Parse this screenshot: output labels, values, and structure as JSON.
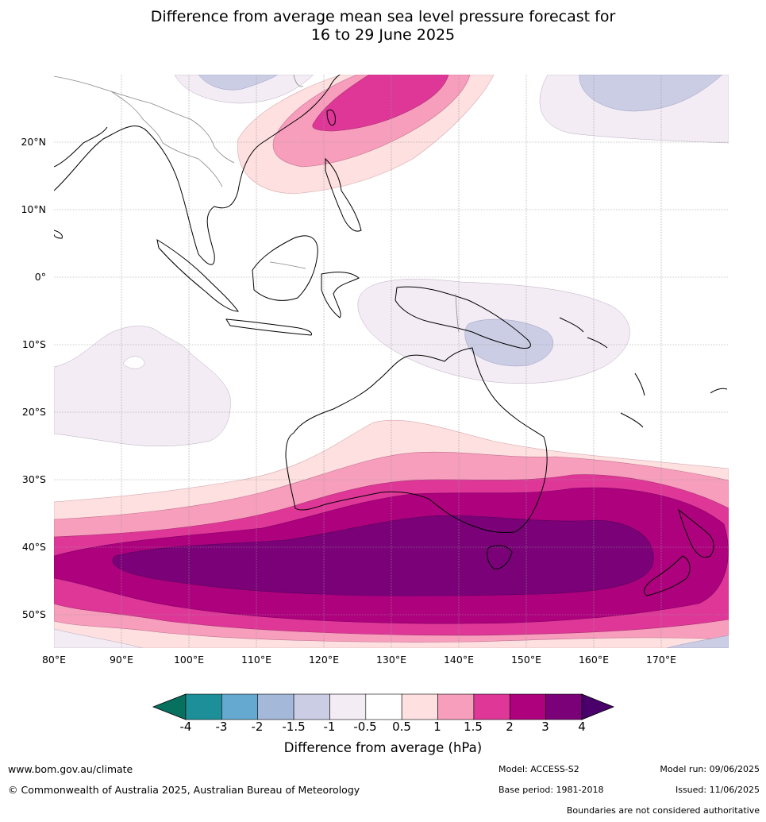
{
  "title_line1": "Difference from average mean sea level pressure forecast for",
  "title_line2": "16 to 29 June 2025",
  "latitude_labels": [
    "20°N",
    "10°N",
    "0°",
    "10°S",
    "20°S",
    "30°S",
    "40°S",
    "50°S"
  ],
  "longitude_labels": [
    "80°E",
    "90°E",
    "100°E",
    "110°E",
    "120°E",
    "130°E",
    "140°E",
    "150°E",
    "160°E",
    "170°E"
  ],
  "colorbar": {
    "labels": [
      "-4",
      "-3",
      "-2",
      "-1.5",
      "-1",
      "-0.5",
      "0.5",
      "1",
      "1.5",
      "2",
      "3",
      "4"
    ],
    "colors": [
      "#07705f",
      "#1d8f98",
      "#66a9d0",
      "#a4b9d9",
      "#cbcde4",
      "#f3ecf4",
      "#ffffff",
      "#fde0df",
      "#f79ebd",
      "#de3798",
      "#ae017e",
      "#7a0177",
      "#49006a"
    ],
    "title": "Difference from average (hPa)"
  },
  "footer": {
    "website": "www.bom.gov.au/climate",
    "copyright": "© Commonwealth of Australia 2025, Australian Bureau of Meteorology",
    "model": "Model: ACCESS-S2",
    "base_period": "Base period: 1981-2018",
    "model_run": "Model run: 09/06/2025",
    "issued": "Issued: 11/06/2025",
    "disclaimer": "Boundaries are not considered authoritative"
  }
}
